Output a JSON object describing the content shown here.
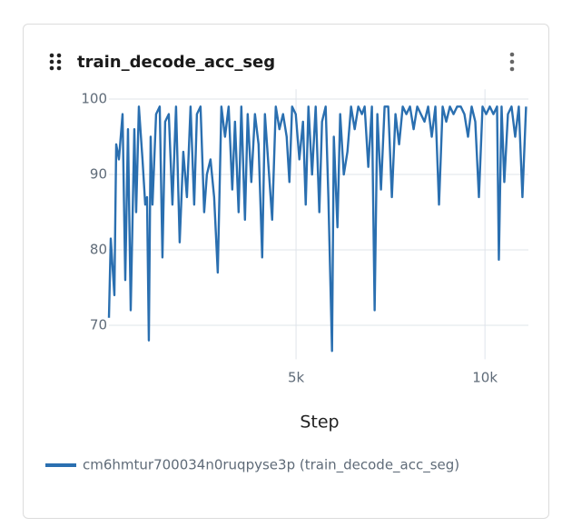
{
  "chart_data": {
    "type": "line",
    "title": "train_decode_acc_seg",
    "x_label": "Step",
    "x": [
      48,
      96,
      192,
      240,
      312,
      408,
      480,
      552,
      624,
      720,
      768,
      840,
      936,
      1008,
      1056,
      1104,
      1152,
      1200,
      1296,
      1392,
      1464,
      1536,
      1632,
      1728,
      1824,
      1920,
      2016,
      2112,
      2208,
      2304,
      2376,
      2472,
      2568,
      2640,
      2736,
      2832,
      2928,
      3024,
      3120,
      3216,
      3312,
      3384,
      3480,
      3552,
      3648,
      3720,
      3816,
      3912,
      4008,
      4104,
      4176,
      4272,
      4368,
      4464,
      4560,
      4656,
      4752,
      4824,
      4896,
      4992,
      5088,
      5184,
      5256,
      5328,
      5424,
      5520,
      5616,
      5688,
      5784,
      5856,
      5952,
      6000,
      6096,
      6168,
      6264,
      6360,
      6456,
      6552,
      6648,
      6744,
      6816,
      6912,
      7008,
      7080,
      7152,
      7248,
      7344,
      7440,
      7536,
      7632,
      7728,
      7824,
      7920,
      8016,
      8112,
      8208,
      8304,
      8400,
      8496,
      8592,
      8688,
      8784,
      8880,
      8976,
      9072,
      9168,
      9264,
      9360,
      9456,
      9552,
      9648,
      9744,
      9840,
      9936,
      10032,
      10128,
      10224,
      10320,
      10368,
      10440,
      10512,
      10608,
      10704,
      10800,
      10896,
      10992,
      11088
    ],
    "series": [
      {
        "name": "cm6hmtur700034n0ruqpyse3p (train_decode_acc_seg)",
        "color": "#2a6fb0",
        "values": [
          71,
          81.5,
          74,
          94,
          92,
          98,
          76,
          96,
          72,
          96,
          85,
          99,
          92,
          86,
          87,
          68,
          95,
          86,
          98,
          99,
          79,
          97,
          98,
          86,
          99,
          81,
          93,
          87,
          99,
          86,
          98,
          99,
          85,
          90,
          92,
          87,
          77,
          99,
          95,
          99,
          88,
          97,
          85,
          99,
          84,
          98,
          89,
          98,
          94,
          79,
          98,
          91,
          84,
          99,
          96,
          98,
          95,
          89,
          99,
          98,
          92,
          97,
          86,
          99,
          90,
          99,
          85,
          97,
          99,
          87,
          66.6,
          95,
          83,
          98,
          90,
          93,
          99,
          96,
          99,
          98,
          99,
          91,
          99,
          72,
          98,
          88,
          99,
          99,
          87,
          98,
          94,
          99,
          98,
          99,
          96,
          99,
          98,
          97,
          99,
          95,
          99,
          86,
          99,
          97,
          99,
          98,
          99,
          99,
          98,
          95,
          99,
          97,
          87,
          99,
          98,
          99,
          98,
          99,
          78.7,
          99,
          89,
          98,
          99,
          95,
          99,
          87,
          99
        ]
      }
    ],
    "xlim": [
      0,
      11150
    ],
    "ylim": [
      65.5,
      101.3
    ],
    "xticks": [
      {
        "value": 5000,
        "label": "5k"
      },
      {
        "value": 10000,
        "label": "10k"
      }
    ],
    "yticks": [
      70,
      80,
      90,
      100
    ],
    "grid": true
  }
}
